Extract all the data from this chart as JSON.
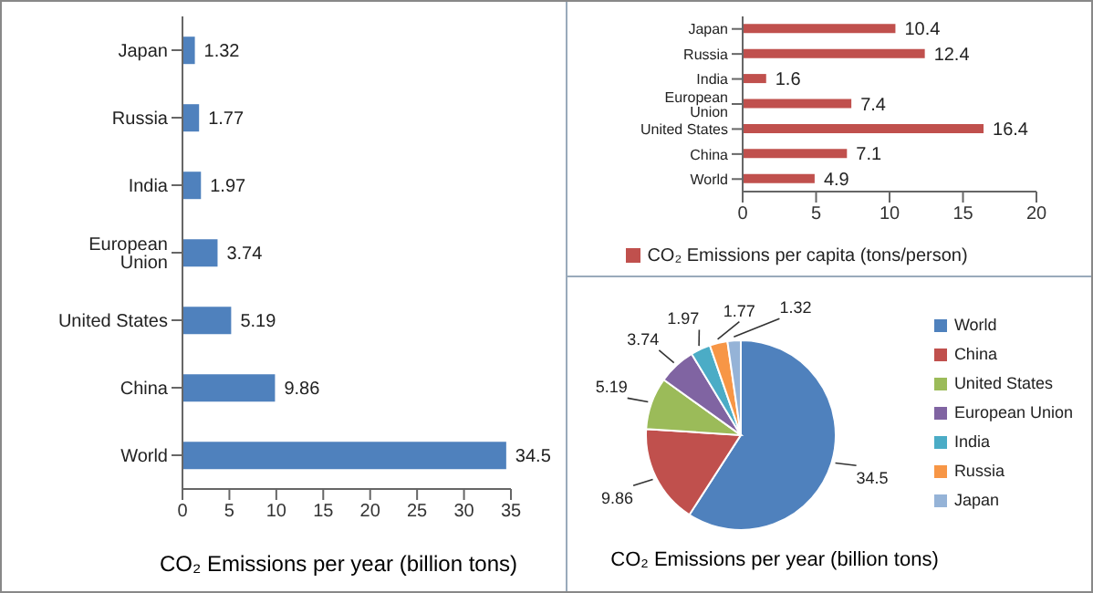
{
  "chart_data": [
    {
      "type": "bar",
      "orientation": "horizontal",
      "categories": [
        "Japan",
        "Russia",
        "India",
        "European Union",
        "United States",
        "China",
        "World"
      ],
      "values": [
        1.32,
        1.77,
        1.97,
        3.74,
        5.19,
        9.86,
        34.5
      ],
      "color": "#4f81bd",
      "xlim": [
        0,
        35
      ],
      "xticks": [
        0,
        5,
        10,
        15,
        20,
        25,
        30,
        35
      ],
      "xlabel": "CO₂ Emissions per year (billion tons)",
      "data_labels": true
    },
    {
      "type": "bar",
      "orientation": "horizontal",
      "categories": [
        "Japan",
        "Russia",
        "India",
        "European Union",
        "United States",
        "China",
        "World"
      ],
      "series": [
        {
          "name": "CO₂ Emissions per capita (tons/person)",
          "color": "#c0504d",
          "values": [
            10.4,
            12.4,
            1.6,
            7.4,
            16.4,
            7.1,
            4.9
          ]
        }
      ],
      "xlim": [
        0,
        20
      ],
      "xticks": [
        0,
        5,
        10,
        15,
        20
      ],
      "data_labels": true,
      "legend": "bottom"
    },
    {
      "type": "pie",
      "categories": [
        "World",
        "China",
        "United States",
        "European Union",
        "India",
        "Russia",
        "Japan"
      ],
      "values": [
        34.5,
        9.86,
        5.19,
        3.74,
        1.97,
        1.77,
        1.32
      ],
      "colors": [
        "#4f81bd",
        "#c0504d",
        "#9bbb59",
        "#8064a2",
        "#4bacc6",
        "#f79646",
        "#95b3d7"
      ],
      "title": "CO₂ Emissions per year (billion tons)",
      "data_labels": true,
      "legend": "right"
    }
  ]
}
